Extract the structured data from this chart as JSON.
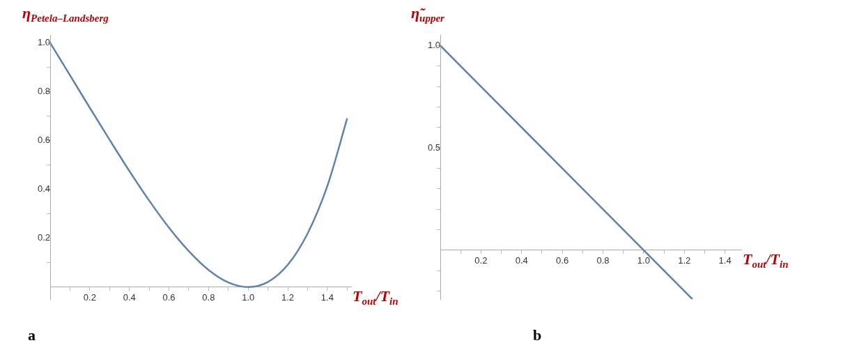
{
  "chart_data": [
    {
      "type": "line",
      "xlabel": "T$_{out}$/T$_{in}$",
      "ylabel": "η$_{Petela–Landsberg}$",
      "marker": "none",
      "line_style": "solid",
      "x": [
        0,
        0.1,
        0.2,
        0.3,
        0.4,
        0.5,
        0.6,
        0.7,
        0.8,
        0.9,
        1.0,
        1.1,
        1.2,
        1.3,
        1.4,
        1.5
      ],
      "series": [
        {
          "color": "#5e81b5",
          "values": [
            1.0,
            0.867,
            0.734,
            0.603,
            0.475,
            0.354,
            0.243,
            0.147,
            0.07,
            0.019,
            0.0,
            0.021,
            0.091,
            0.219,
            0.414,
            0.69
          ]
        }
      ],
      "xlim": [
        0,
        1.52
      ],
      "ylim": [
        -0.05,
        1.03
      ],
      "xticks": [
        {
          "value": 0.1,
          "label": null
        },
        0.2,
        {
          "value": 0.3,
          "label": null
        },
        0.4,
        {
          "value": 0.5,
          "label": null
        },
        0.6,
        {
          "value": 0.7,
          "label": null
        },
        0.8,
        {
          "value": 0.9,
          "label": null
        },
        {
          "value": 1.0,
          "label": "1.0"
        },
        {
          "value": 1.1,
          "label": null
        },
        1.2,
        {
          "value": 1.3,
          "label": null
        },
        1.4,
        {
          "value": 1.5,
          "label": null
        }
      ],
      "yticks": [
        {
          "value": 0.1,
          "label": null
        },
        0.2,
        {
          "value": 0.3,
          "label": null
        },
        0.4,
        {
          "value": 0.5,
          "label": null
        },
        0.6,
        {
          "value": 0.7,
          "label": null
        },
        0.8,
        {
          "value": 0.9,
          "label": null
        },
        {
          "value": 1.0,
          "label": "1.0"
        }
      ],
      "annotations": [
        "a"
      ]
    },
    {
      "type": "line",
      "xlabel": "T$_{out}$/T$_{in}$",
      "ylabel": "η̃$_{upper}$",
      "marker": "none",
      "line_style": "solid",
      "x": [
        0,
        1.24
      ],
      "series": [
        {
          "color": "#5e81b5",
          "values": [
            1.0,
            -0.24
          ]
        }
      ],
      "xlim": [
        0,
        1.48
      ],
      "ylim": [
        -0.24,
        1.05
      ],
      "xticks": [
        {
          "value": 0.1,
          "label": null
        },
        0.2,
        {
          "value": 0.3,
          "label": null
        },
        0.4,
        {
          "value": 0.5,
          "label": null
        },
        0.6,
        {
          "value": 0.7,
          "label": null
        },
        0.8,
        {
          "value": 0.9,
          "label": null
        },
        {
          "value": 1.0,
          "label": "1.0"
        },
        {
          "value": 1.1,
          "label": null
        },
        1.2,
        {
          "value": 1.3,
          "label": null
        },
        1.4
      ],
      "yticks": [
        {
          "value": -0.2,
          "label": null
        },
        {
          "value": -0.1,
          "label": null
        },
        {
          "value": 0.1,
          "label": null
        },
        {
          "value": 0.2,
          "label": null
        },
        {
          "value": 0.3,
          "label": null
        },
        {
          "value": 0.4,
          "label": null
        },
        0.5,
        {
          "value": 0.6,
          "label": null
        },
        {
          "value": 0.7,
          "label": null
        },
        {
          "value": 0.8,
          "label": null
        },
        {
          "value": 0.9,
          "label": null
        },
        {
          "value": 1.0,
          "label": "1.0"
        }
      ],
      "annotations": [
        "b"
      ]
    }
  ]
}
